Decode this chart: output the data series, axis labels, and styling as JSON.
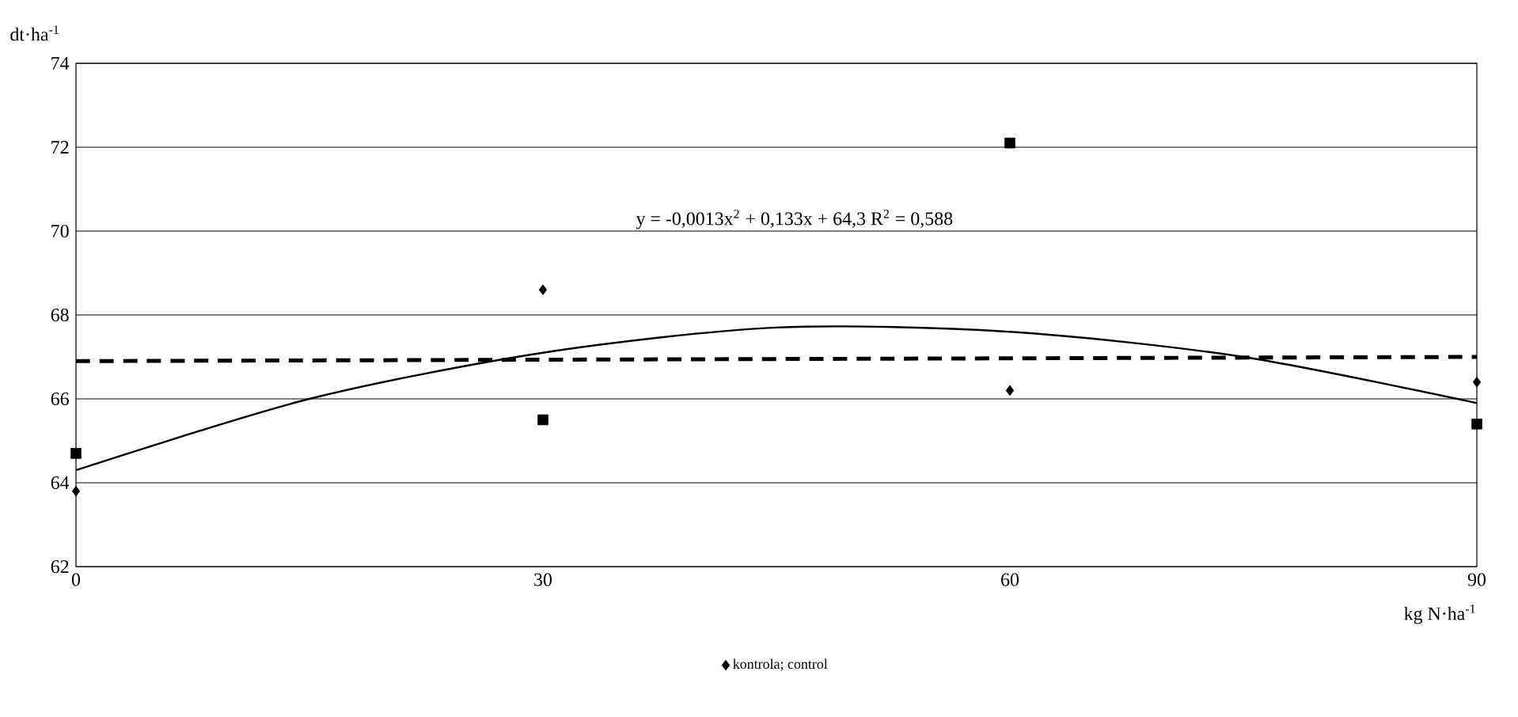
{
  "chart_data": {
    "type": "scatter",
    "ylabel": "dt·ha$^{-1}$",
    "xlabel": "kg N·ha$^{-1}$",
    "annotations": [
      "y = -0,0013x$^{2}$ + 0,133x + 64,3      R$^{2}$ = 0,588"
    ],
    "xlim": [
      0,
      90
    ],
    "ylim": [
      62,
      74
    ],
    "xticks": [
      0,
      30,
      60,
      90
    ],
    "yticks": [
      62,
      64,
      66,
      68,
      70,
      72,
      74
    ],
    "grid": "y",
    "legend": "bottom",
    "series": [
      {
        "name": "kontrola; control",
        "type": "scatter",
        "marker": "diamond",
        "color": "#000000",
        "x": [
          0,
          30,
          60,
          90
        ],
        "values": [
          63.8,
          68.6,
          66.2,
          66.4
        ]
      },
      {
        "type": "scatter",
        "marker": "square",
        "color": "#000000",
        "x": [
          0,
          30,
          60,
          90
        ],
        "values": [
          64.7,
          65.5,
          72.1,
          65.4
        ]
      },
      {
        "type": "line",
        "marker": "none",
        "line_style": "dashed",
        "color": "#000000",
        "x": [
          0,
          90
        ],
        "values": [
          66.9,
          67.0
        ]
      },
      {
        "type": "line",
        "marker": "none",
        "line_style": "solid",
        "color": "#000000",
        "x": [
          0,
          15,
          30,
          45,
          60,
          75,
          90
        ],
        "values": [
          64.3,
          66.0,
          67.1,
          67.7,
          67.6,
          67.0,
          65.9
        ]
      }
    ]
  }
}
